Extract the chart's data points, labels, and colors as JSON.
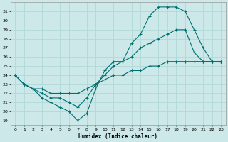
{
  "title": "",
  "xlabel": "Humidex (Indice chaleur)",
  "x_ticks": [
    0,
    1,
    2,
    3,
    4,
    5,
    6,
    7,
    8,
    9,
    10,
    11,
    12,
    13,
    14,
    15,
    16,
    17,
    18,
    19,
    20,
    21,
    22,
    23
  ],
  "ylim_min": 18.5,
  "ylim_max": 32.0,
  "xlim": [
    -0.5,
    23.5
  ],
  "y_ticks": [
    19,
    20,
    21,
    22,
    23,
    24,
    25,
    26,
    27,
    28,
    29,
    30,
    31
  ],
  "bg_color": "#cce8e8",
  "line_color": "#007070",
  "grid_color": "#b0d8d8",
  "line1_x": [
    0,
    1,
    2,
    3,
    4,
    5,
    6,
    7,
    8,
    9,
    10,
    11,
    12,
    13,
    14,
    15,
    16,
    17,
    18,
    19,
    20,
    21,
    22,
    23
  ],
  "line1_y": [
    24,
    23,
    22.5,
    21.5,
    21.0,
    20.5,
    20.0,
    19.0,
    19.8,
    22.5,
    24.5,
    25.5,
    25.5,
    27.5,
    28.5,
    30.5,
    31.5,
    31.5,
    31.5,
    31.0,
    29.0,
    27.0,
    25.5,
    25.5
  ],
  "line2_x": [
    0,
    1,
    2,
    3,
    4,
    5,
    6,
    7,
    8,
    9,
    10,
    11,
    12,
    13,
    14,
    15,
    16,
    17,
    18,
    19,
    20,
    21,
    22,
    23
  ],
  "line2_y": [
    24,
    23,
    22.5,
    22.0,
    21.5,
    21.5,
    21.0,
    20.5,
    21.5,
    23.0,
    24.0,
    25.0,
    25.5,
    26.0,
    27.0,
    27.5,
    28.0,
    28.5,
    29.0,
    29.0,
    26.5,
    25.5,
    25.5,
    25.5
  ],
  "line3_x": [
    0,
    1,
    2,
    3,
    4,
    5,
    6,
    7,
    8,
    9,
    10,
    11,
    12,
    13,
    14,
    15,
    16,
    17,
    18,
    19,
    20,
    21,
    22,
    23
  ],
  "line3_y": [
    24,
    23,
    22.5,
    22.5,
    22.0,
    22.0,
    22.0,
    22.0,
    22.5,
    23.0,
    23.5,
    24.0,
    24.0,
    24.5,
    24.5,
    25.0,
    25.0,
    25.5,
    25.5,
    25.5,
    25.5,
    25.5,
    25.5,
    25.5
  ]
}
